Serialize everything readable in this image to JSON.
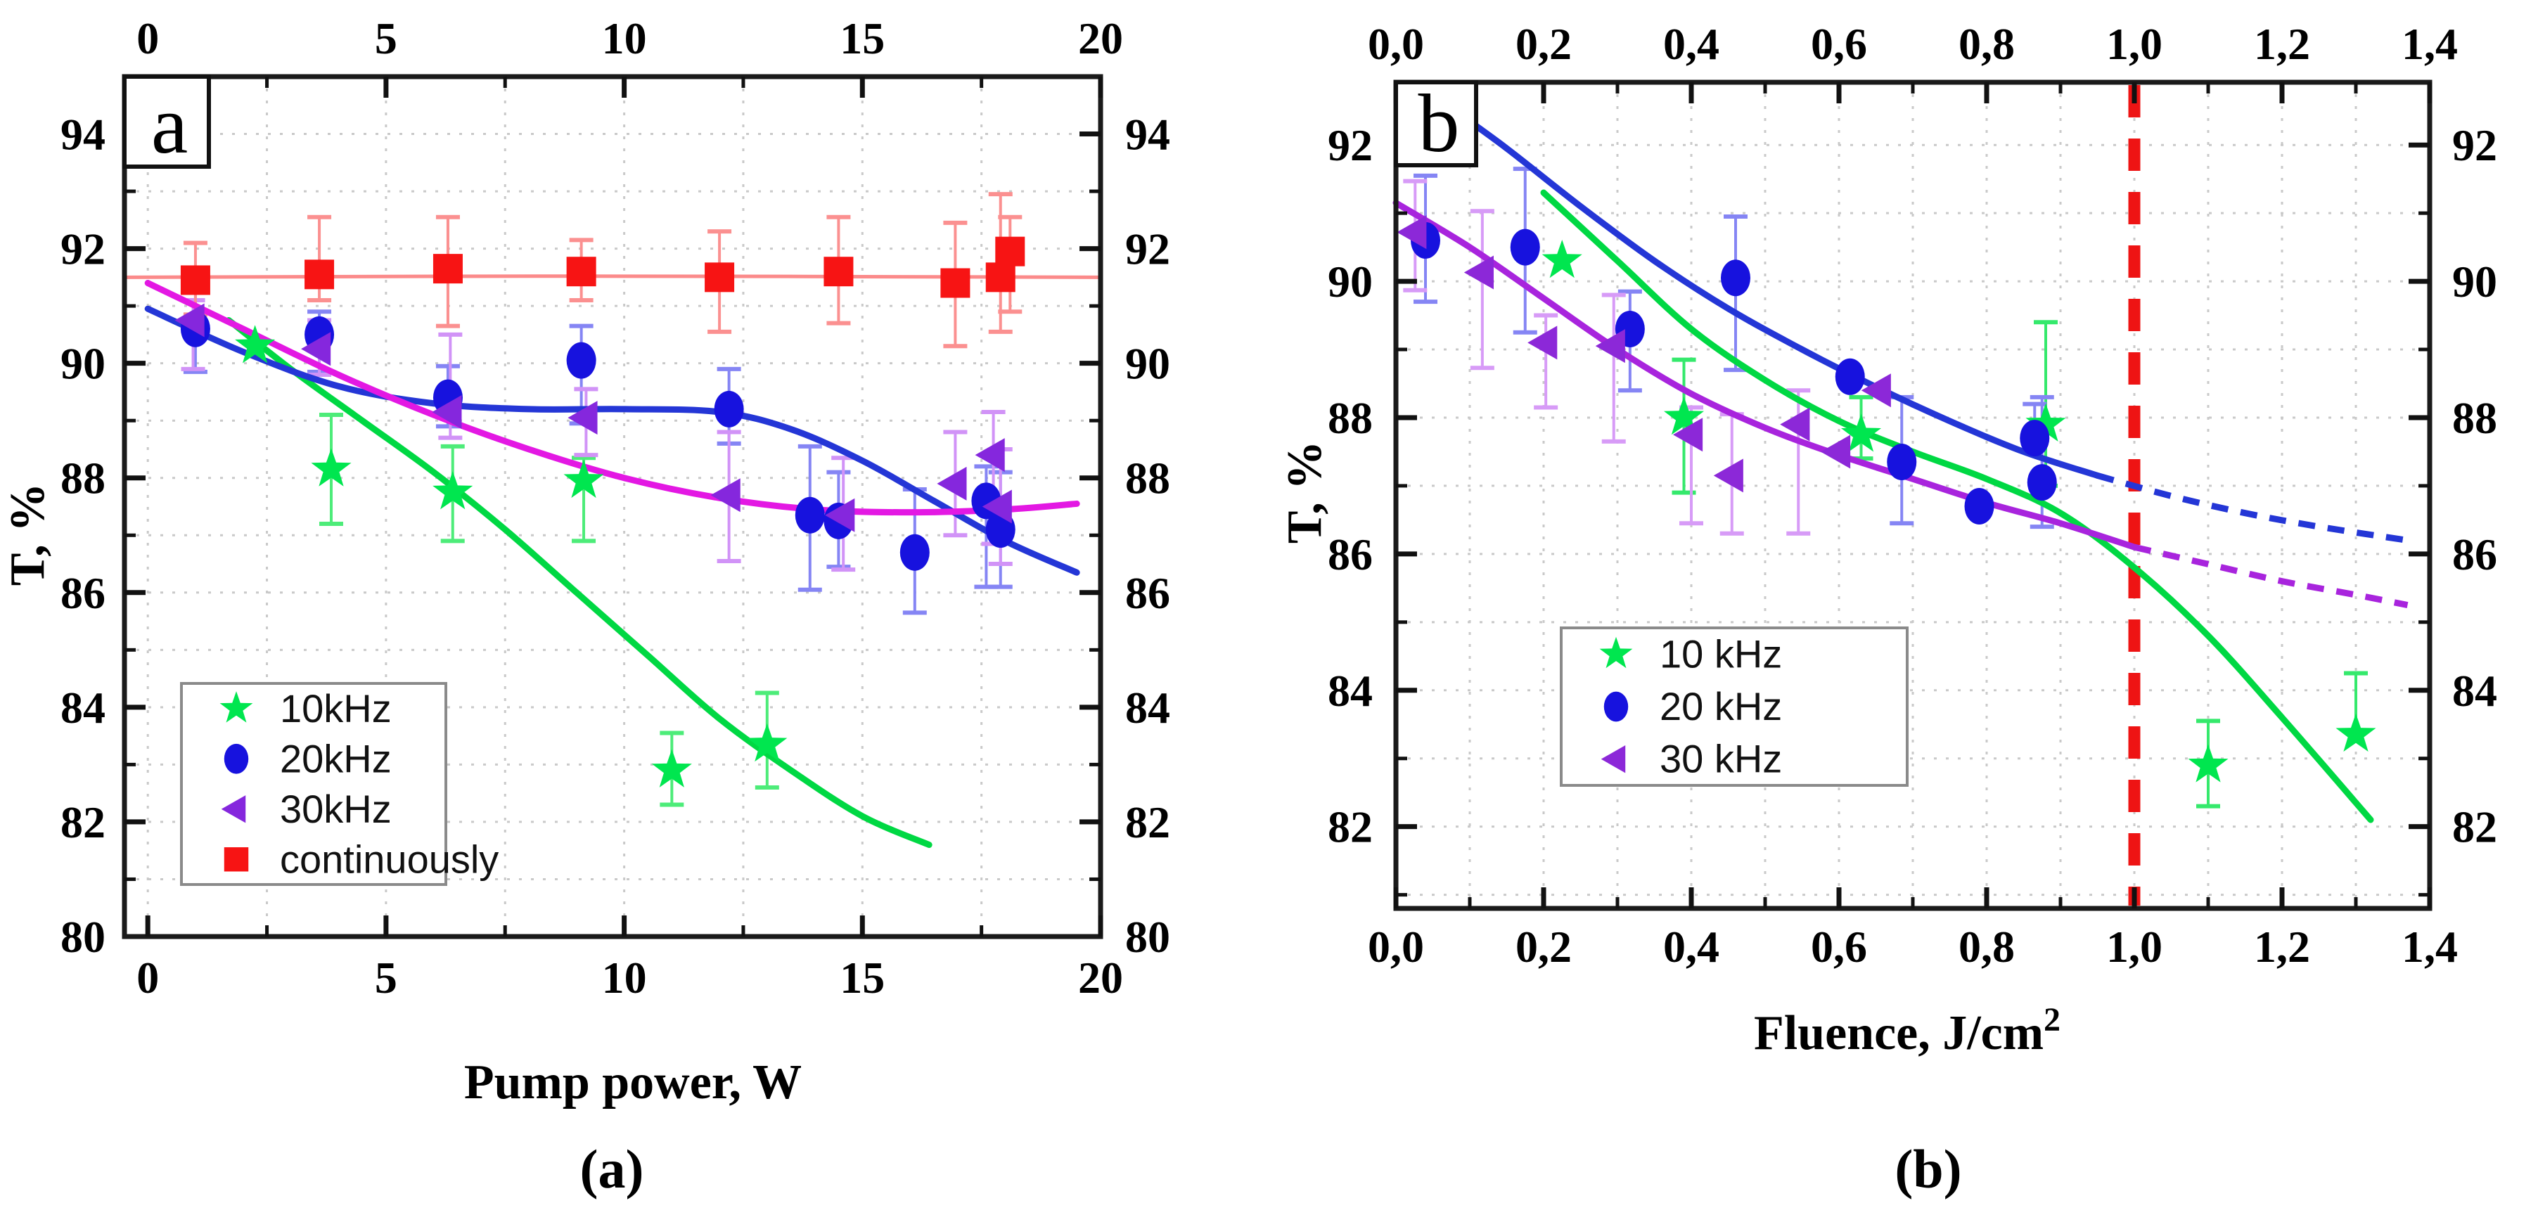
{
  "figure": {
    "captions": {
      "a": "(a)",
      "b": "(b)"
    }
  },
  "chart_data": [
    {
      "id": "a",
      "type": "scatter",
      "panel_label": "a",
      "xlabel": "Pump power, W",
      "xlabel_sup": "",
      "ylabel": "T, %",
      "xlim": [
        -0.49,
        20.0
      ],
      "ylim": [
        80.0,
        95.0
      ],
      "grid": true,
      "x_ticks": [
        {
          "v": 0,
          "t": "0"
        },
        {
          "v": 5,
          "t": "5"
        },
        {
          "v": 10,
          "t": "10"
        },
        {
          "v": 15,
          "t": "15"
        },
        {
          "v": 20,
          "t": "20"
        }
      ],
      "x_minor": [
        2.5,
        7.5,
        12.5,
        17.5
      ],
      "y_ticks": [
        {
          "v": 80,
          "t": "80"
        },
        {
          "v": 82,
          "t": "82"
        },
        {
          "v": 84,
          "t": "84"
        },
        {
          "v": 86,
          "t": "86"
        },
        {
          "v": 88,
          "t": "88"
        },
        {
          "v": 90,
          "t": "90"
        },
        {
          "v": 92,
          "t": "92"
        },
        {
          "v": 94,
          "t": "94"
        }
      ],
      "y_minor": [
        81,
        83,
        85,
        87,
        89,
        91,
        93
      ],
      "legend_position": "lower-left",
      "series": [
        {
          "key": "s10",
          "name": "10kHz",
          "marker": "star",
          "color": "#00e64f",
          "err_color": "#4dec79",
          "line_color": "#00d843",
          "points": [
            [
              2.25,
              90.3,
              0,
              0
            ],
            [
              3.85,
              88.15,
              0.95,
              0.95
            ],
            [
              6.4,
              87.75,
              0.8,
              0.85
            ],
            [
              9.15,
              87.95,
              0.4,
              1.05
            ],
            [
              11.0,
              82.9,
              0.65,
              0.6
            ],
            [
              13.0,
              83.35,
              0.9,
              0.75
            ]
          ],
          "fit": [
            [
              1.7,
              90.75
            ],
            [
              3.0,
              89.9
            ],
            [
              4.5,
              89.0
            ],
            [
              6.0,
              88.1
            ],
            [
              7.5,
              87.1
            ],
            [
              9.0,
              86.0
            ],
            [
              10.5,
              84.9
            ],
            [
              12.0,
              83.8
            ],
            [
              13.5,
              82.9
            ],
            [
              15.0,
              82.1
            ],
            [
              16.4,
              81.6
            ]
          ]
        },
        {
          "key": "s20",
          "name": "20kHz",
          "marker": "circle",
          "color": "#1712de",
          "err_color": "#8585f4",
          "line_color": "#2436d6",
          "points": [
            [
              1.0,
              90.6,
              0.7,
              0.75
            ],
            [
              3.6,
              90.5,
              0.4,
              0.65
            ],
            [
              6.3,
              89.4,
              0.55,
              0.5
            ],
            [
              9.1,
              90.05,
              0.6,
              1.1
            ],
            [
              12.2,
              89.2,
              0.7,
              0.6
            ],
            [
              13.9,
              87.35,
              1.2,
              1.3
            ],
            [
              14.5,
              87.25,
              0.85,
              0.8
            ],
            [
              16.1,
              86.7,
              1.1,
              1.05
            ],
            [
              17.6,
              87.6,
              0.6,
              1.5
            ],
            [
              17.9,
              87.1,
              1.0,
              1.0
            ]
          ],
          "fit": [
            [
              0,
              90.95
            ],
            [
              2,
              90.2
            ],
            [
              4,
              89.6
            ],
            [
              6,
              89.3
            ],
            [
              8,
              89.2
            ],
            [
              10,
              89.2
            ],
            [
              12,
              89.15
            ],
            [
              13.5,
              88.85
            ],
            [
              15,
              88.3
            ],
            [
              16.5,
              87.6
            ],
            [
              18,
              86.9
            ],
            [
              19.5,
              86.35
            ]
          ]
        },
        {
          "key": "s30",
          "name": "30kHz",
          "marker": "tri-left",
          "color": "#8527dd",
          "err_color": "#d193f7",
          "line_color": "#e318e3",
          "points": [
            [
              0.95,
              90.75,
              0.35,
              0.85
            ],
            [
              3.6,
              90.25,
              0.5,
              0.45
            ],
            [
              6.35,
              89.15,
              1.35,
              0.45
            ],
            [
              9.2,
              89.05,
              0.5,
              0.65
            ],
            [
              12.2,
              87.7,
              1.1,
              1.15
            ],
            [
              14.6,
              87.35,
              1.0,
              0.95
            ],
            [
              16.95,
              87.9,
              0.9,
              0.9
            ],
            [
              17.75,
              88.4,
              0.75,
              1.55
            ],
            [
              17.9,
              87.5,
              1.0,
              1.0
            ]
          ],
          "fit": [
            [
              0,
              91.4
            ],
            [
              2,
              90.6
            ],
            [
              4,
              89.8
            ],
            [
              6,
              89.1
            ],
            [
              8,
              88.5
            ],
            [
              10,
              88.0
            ],
            [
              12,
              87.65
            ],
            [
              14,
              87.45
            ],
            [
              16,
              87.4
            ],
            [
              18,
              87.45
            ],
            [
              19.5,
              87.55
            ]
          ]
        },
        {
          "key": "scw",
          "name": "continuously",
          "marker": "square",
          "color": "#f71414",
          "err_color": "#fb9090",
          "line_color": "#fb8a8a",
          "line_width": 5,
          "points": [
            [
              1.0,
              91.45,
              0.65,
              0.6
            ],
            [
              3.6,
              91.55,
              1.0,
              0.45
            ],
            [
              6.3,
              91.65,
              0.9,
              1.0
            ],
            [
              9.1,
              91.6,
              0.55,
              0.5
            ],
            [
              12.0,
              91.5,
              0.8,
              0.95
            ],
            [
              14.5,
              91.6,
              0.95,
              0.9
            ],
            [
              16.95,
              91.4,
              1.05,
              1.1
            ],
            [
              17.9,
              91.5,
              1.45,
              0.95
            ],
            [
              18.1,
              91.95,
              0.6,
              1.05
            ]
          ],
          "fit": [
            [
              -0.45,
              91.5
            ],
            [
              9,
              91.52
            ],
            [
              19.95,
              91.5
            ]
          ]
        }
      ]
    },
    {
      "id": "b",
      "type": "scatter",
      "panel_label": "b",
      "xlabel": "Fluence, J/cm",
      "xlabel_sup": "2",
      "ylabel": "T, %",
      "xlim": [
        0.0,
        1.4
      ],
      "ylim": [
        80.8,
        92.92
      ],
      "grid": true,
      "x_ticks": [
        {
          "v": 0.0,
          "t": "0,0"
        },
        {
          "v": 0.2,
          "t": "0,2"
        },
        {
          "v": 0.4,
          "t": "0,4"
        },
        {
          "v": 0.6,
          "t": "0,6"
        },
        {
          "v": 0.8,
          "t": "0,8"
        },
        {
          "v": 1.0,
          "t": "1,0"
        },
        {
          "v": 1.2,
          "t": "1,2"
        },
        {
          "v": 1.4,
          "t": "1,4"
        }
      ],
      "x_minor": [
        0.1,
        0.3,
        0.5,
        0.7,
        0.9,
        1.1,
        1.3
      ],
      "y_ticks": [
        {
          "v": 82,
          "t": "82"
        },
        {
          "v": 84,
          "t": "84"
        },
        {
          "v": 86,
          "t": "86"
        },
        {
          "v": 88,
          "t": "88"
        },
        {
          "v": 90,
          "t": "90"
        },
        {
          "v": 92,
          "t": "92"
        }
      ],
      "y_minor": [
        81,
        83,
        85,
        87,
        89,
        91
      ],
      "legend_position": "lower-left",
      "vline": {
        "x": 1.0,
        "color": "#ee1414",
        "style": "dashed"
      },
      "series": [
        {
          "key": "s10",
          "name": "10 kHz",
          "marker": "star",
          "color": "#00e64f",
          "err_color": "#35e96c",
          "line_color": "#00d843",
          "points": [
            [
              0.225,
              90.3,
              0,
              0
            ],
            [
              0.39,
              88.0,
              0.85,
              1.1
            ],
            [
              0.63,
              87.75,
              0.55,
              0.35
            ],
            [
              0.88,
              87.9,
              1.5,
              0.9
            ],
            [
              1.1,
              82.9,
              0.65,
              0.6
            ],
            [
              1.3,
              83.35,
              0.9,
              0
            ]
          ],
          "fit": [
            [
              0.2,
              91.3
            ],
            [
              0.3,
              90.3
            ],
            [
              0.4,
              89.3
            ],
            [
              0.5,
              88.55
            ],
            [
              0.6,
              87.95
            ],
            [
              0.7,
              87.5
            ],
            [
              0.8,
              87.1
            ],
            [
              0.9,
              86.6
            ],
            [
              1.0,
              85.8
            ],
            [
              1.1,
              84.8
            ],
            [
              1.2,
              83.6
            ],
            [
              1.32,
              82.1
            ]
          ]
        },
        {
          "key": "s20",
          "name": "20 kHz",
          "marker": "circle",
          "color": "#1712de",
          "err_color": "#8585f4",
          "line_color": "#2436d6",
          "fit_dash_from": 0.92,
          "points": [
            [
              0.04,
              90.6,
              0.95,
              0.9
            ],
            [
              0.175,
              90.5,
              1.15,
              1.25
            ],
            [
              0.317,
              89.3,
              0.55,
              0.9
            ],
            [
              0.46,
              90.05,
              0.9,
              1.35
            ],
            [
              0.615,
              88.6,
              0,
              0
            ],
            [
              0.685,
              87.35,
              0.95,
              0.9
            ],
            [
              0.79,
              86.7,
              0,
              0
            ],
            [
              0.865,
              87.7,
              0.5,
              0
            ],
            [
              0.875,
              87.05,
              1.25,
              0.65
            ]
          ],
          "fit": [
            [
              0.08,
              92.5
            ],
            [
              0.15,
              91.95
            ],
            [
              0.25,
              91.1
            ],
            [
              0.35,
              90.3
            ],
            [
              0.45,
              89.6
            ],
            [
              0.55,
              89.0
            ],
            [
              0.65,
              88.45
            ],
            [
              0.75,
              87.95
            ],
            [
              0.85,
              87.5
            ],
            [
              0.95,
              87.15
            ],
            [
              1.05,
              86.85
            ],
            [
              1.15,
              86.6
            ],
            [
              1.25,
              86.4
            ],
            [
              1.37,
              86.2
            ]
          ]
        },
        {
          "key": "s30",
          "name": "30 kHz",
          "marker": "tri-left",
          "color": "#8c28d8",
          "err_color": "#d79bf7",
          "line_color": "#a824dd",
          "fit_dash_from": 0.92,
          "points": [
            [
              0.026,
              90.72,
              0.75,
              0.85
            ],
            [
              0.117,
              90.13,
              0.9,
              1.4
            ],
            [
              0.203,
              89.1,
              0.4,
              0.95
            ],
            [
              0.295,
              89.05,
              0.75,
              1.4
            ],
            [
              0.4,
              87.75,
              0.4,
              1.3
            ],
            [
              0.455,
              87.15,
              0.9,
              0.85
            ],
            [
              0.545,
              87.9,
              0.5,
              1.6
            ],
            [
              0.6,
              87.5,
              0,
              0
            ],
            [
              0.655,
              88.4,
              0,
              0
            ]
          ],
          "fit": [
            [
              0.0,
              91.15
            ],
            [
              0.1,
              90.5
            ],
            [
              0.2,
              89.75
            ],
            [
              0.3,
              89.0
            ],
            [
              0.4,
              88.35
            ],
            [
              0.5,
              87.85
            ],
            [
              0.6,
              87.45
            ],
            [
              0.7,
              87.1
            ],
            [
              0.8,
              86.75
            ],
            [
              0.9,
              86.45
            ],
            [
              1.0,
              86.1
            ],
            [
              1.1,
              85.85
            ],
            [
              1.2,
              85.6
            ],
            [
              1.3,
              85.4
            ],
            [
              1.37,
              85.25
            ]
          ]
        }
      ]
    }
  ]
}
